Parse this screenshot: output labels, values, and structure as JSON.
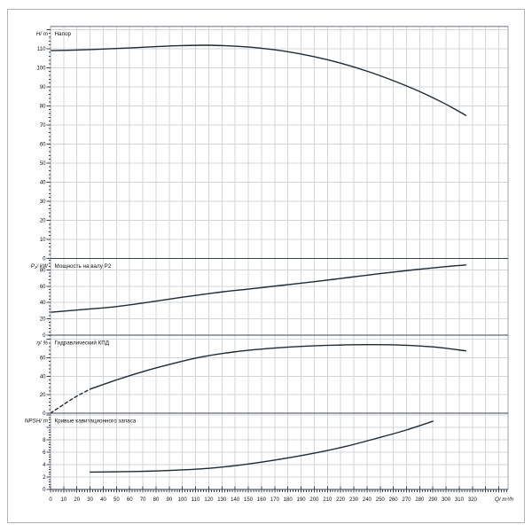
{
  "figure": {
    "background": "#ffffff",
    "frame_color": "#b3b3b3"
  },
  "style": {
    "curve_color": "#1e2a36",
    "grid_color": "#d2d4d7",
    "axis_color": "#3a4350",
    "border_color": "#9aa0a6",
    "text_color": "#111111"
  },
  "x_axis": {
    "label": "Q/ m³/h",
    "xlim": [
      0,
      347
    ],
    "ticks": [
      0,
      10,
      20,
      30,
      40,
      50,
      60,
      70,
      80,
      90,
      100,
      110,
      120,
      130,
      140,
      150,
      160,
      170,
      180,
      190,
      200,
      210,
      220,
      230,
      240,
      250,
      260,
      270,
      280,
      290,
      300,
      310,
      320
    ],
    "minor_step": 2
  },
  "chart_data": [
    {
      "id": "head",
      "type": "line",
      "title": "Напор",
      "ylabel": "H/ m",
      "xlabel": "Q/ m³/h",
      "ylim": [
        0,
        121.8
      ],
      "yticks": [
        0,
        10,
        20,
        30,
        40,
        50,
        60,
        70,
        80,
        90,
        100,
        110
      ],
      "minor_step": 2,
      "grid": true,
      "series": [
        {
          "name": "head-curve",
          "dash": false,
          "points": [
            [
              0,
              109
            ],
            [
              20,
              109.3
            ],
            [
              40,
              109.8
            ],
            [
              60,
              110.4
            ],
            [
              80,
              111.1
            ],
            [
              100,
              111.6
            ],
            [
              120,
              111.8
            ],
            [
              140,
              111.3
            ],
            [
              160,
              110.2
            ],
            [
              180,
              108.4
            ],
            [
              200,
              105.8
            ],
            [
              220,
              102.4
            ],
            [
              240,
              98.2
            ],
            [
              260,
              93.2
            ],
            [
              280,
              87.5
            ],
            [
              300,
              80.8
            ],
            [
              315,
              75
            ]
          ]
        }
      ]
    },
    {
      "id": "power",
      "type": "line",
      "title": "Мощность на валу P2",
      "ylabel": "P₂/ kW",
      "xlabel": "Q/ m³/h",
      "ylim": [
        0,
        94
      ],
      "yticks": [
        0,
        20,
        40,
        60,
        80
      ],
      "minor_step": 4,
      "grid": true,
      "series": [
        {
          "name": "power-curve",
          "dash": false,
          "points": [
            [
              0,
              28
            ],
            [
              25,
              31.5
            ],
            [
              50,
              35
            ],
            [
              75,
              40.5
            ],
            [
              100,
              46.5
            ],
            [
              125,
              52
            ],
            [
              150,
              56.5
            ],
            [
              175,
              61
            ],
            [
              200,
              65.5
            ],
            [
              225,
              70.5
            ],
            [
              250,
              75.5
            ],
            [
              275,
              80
            ],
            [
              300,
              84
            ],
            [
              315,
              86
            ]
          ]
        }
      ]
    },
    {
      "id": "efficiency",
      "type": "line",
      "title": "Гидравлический КПД",
      "ylabel": "η/ %",
      "xlabel": "Q/ m³/h",
      "ylim": [
        0,
        84.5
      ],
      "yticks": [
        0,
        20,
        40,
        60
      ],
      "minor_step": 4,
      "grid": true,
      "series": [
        {
          "name": "efficiency-curve-dashed",
          "dash": true,
          "points": [
            [
              0,
              0
            ],
            [
              10,
              9.5
            ],
            [
              20,
              18.5
            ],
            [
              30,
              26
            ]
          ]
        },
        {
          "name": "efficiency-curve",
          "dash": false,
          "points": [
            [
              30,
              26
            ],
            [
              50,
              36
            ],
            [
              70,
              45
            ],
            [
              95,
              54.5
            ],
            [
              115,
              61
            ],
            [
              140,
              66.5
            ],
            [
              165,
              70
            ],
            [
              190,
              72.3
            ],
            [
              215,
              73.6
            ],
            [
              240,
              74.2
            ],
            [
              265,
              73.8
            ],
            [
              290,
              71.8
            ],
            [
              315,
              67.5
            ]
          ]
        }
      ]
    },
    {
      "id": "npsh",
      "type": "line",
      "title": "Кривые кавитационного запаса",
      "ylabel": "NPSH/ m",
      "xlabel": "Q/ m³/h",
      "ylim": [
        0,
        12.3
      ],
      "yticks": [
        0,
        2,
        4,
        6,
        8
      ],
      "minor_step": 0.4,
      "grid": true,
      "series": [
        {
          "name": "npsh-curve",
          "dash": false,
          "points": [
            [
              30,
              2.8
            ],
            [
              50,
              2.85
            ],
            [
              75,
              2.95
            ],
            [
              100,
              3.15
            ],
            [
              125,
              3.5
            ],
            [
              150,
              4.1
            ],
            [
              175,
              4.9
            ],
            [
              200,
              5.85
            ],
            [
              225,
              7
            ],
            [
              250,
              8.4
            ],
            [
              270,
              9.6
            ],
            [
              290,
              11
            ]
          ]
        }
      ]
    }
  ]
}
